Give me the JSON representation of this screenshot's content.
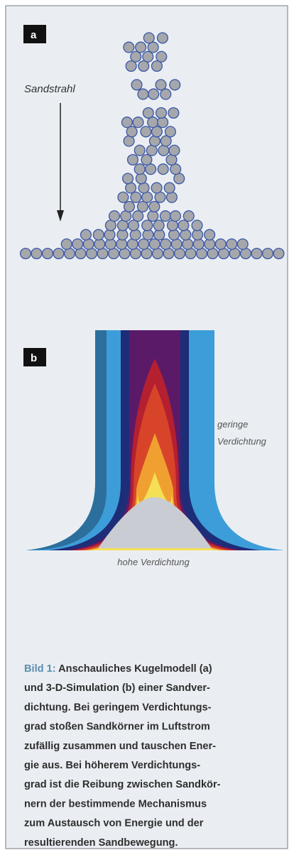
{
  "panel_a": {
    "label": "a",
    "arrow_label": "Sandstrahl"
  },
  "panel_b": {
    "label": "b",
    "top_label": [
      "geringe",
      "Verdichtung"
    ],
    "bottom_label": "hohe Verdichtung"
  },
  "caption": {
    "label": "Bild 1:",
    "lines": [
      "Anschauliches Kugelmodell (a)",
      "und 3-D-Simulation (b) einer Sandver-",
      "dichtung. Bei geringem Verdichtungs-",
      "grad stoßen Sandkörner im Luftstrom",
      "zufällig zusammen und tauschen Ener-",
      "gie aus. Bei höherem Verdichtungs-",
      "grad ist die Reibung zwischen Sandkör-",
      "nern der bestimmende Mechanismus",
      "zum Austausch von Energie und der",
      "resultierenden Sandbewegung."
    ]
  }
}
